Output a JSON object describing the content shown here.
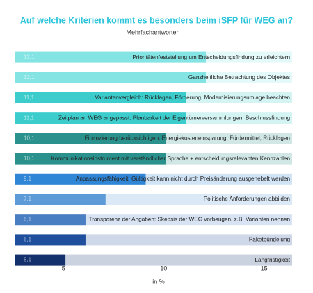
{
  "chart_data": {
    "type": "barh",
    "title": "Auf welche Kriterien kommt es besonders beim iSFP für WEG an?",
    "subtitle": "Mehrfachantworten",
    "xlabel": "in %",
    "categories": [
      "Prioritätenfeststellung um Entscheidungsfindung zu erleichtern",
      "Ganzheitliche Betrachtung des Objektes",
      "Variantenvergleich: Rücklagen, Förderung, Modernisierungsumlage beachten",
      "Zeitplan an WEG angepasst: Planbarkeit der Eigentümerversammlungen, Beschlussfindung",
      "Finanzierung berücksichtigen: Energiekosteneinsparung, Fördermittel, Rücklagen",
      "Kommunikationsinstrument mit verständlicher Sprache + entscheidungsrelevanten Kennzahlen",
      "Anpassungsfähigkeit: Gültigkeit kann nicht durch Preisänderung ausgehebelt werden",
      "Politische Anforderungen abbilden",
      "Transparenz der Angaben: Skepsis der WEG vorbeugen, z.B. Varianten nennen",
      "Paketbündelung",
      "Langfristigkeit"
    ],
    "values": [
      12.1,
      12.1,
      11.1,
      11.1,
      10.1,
      10.1,
      9.1,
      7.1,
      6.1,
      6.1,
      5.1
    ],
    "value_labels": [
      "12,1",
      "12,1",
      "11,1",
      "11,1",
      "10,1",
      "10,1",
      "9,1",
      "7,1",
      "6,1",
      "6,1",
      "5,1"
    ],
    "colors": [
      "#84e4e4",
      "#84e4e4",
      "#3ccccc",
      "#3ccccc",
      "#2a918c",
      "#2a918c",
      "#2f86d6",
      "#5d9bd8",
      "#4a7ec2",
      "#1f4f9c",
      "#14306c"
    ],
    "xlim": [
      2.6,
      16.4
    ],
    "xticks": [
      5,
      10,
      15
    ]
  }
}
